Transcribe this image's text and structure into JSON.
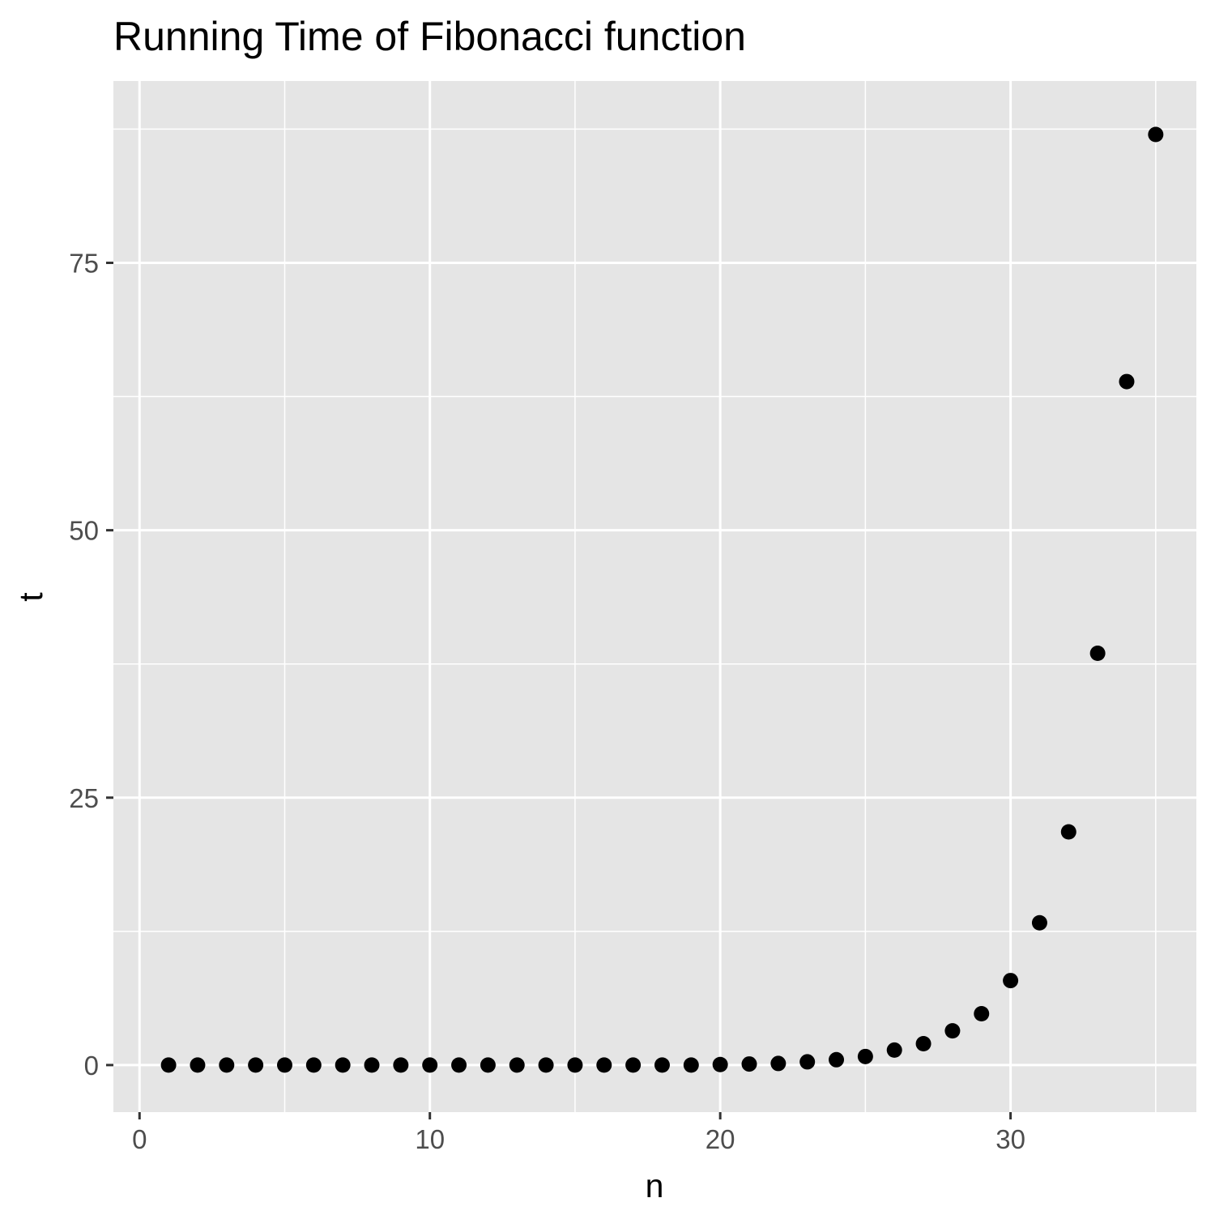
{
  "chart_data": {
    "type": "scatter",
    "title": "Running Time of Fibonacci function",
    "xlabel": "n",
    "ylabel": "t",
    "xlim": [
      -0.9,
      36.4
    ],
    "ylim": [
      -4.4,
      92.0
    ],
    "x_ticks": [
      0,
      10,
      20,
      30
    ],
    "y_ticks": [
      0,
      25,
      50,
      75
    ],
    "x_tick_labels": [
      "0",
      "10",
      "20",
      "30"
    ],
    "y_tick_labels": [
      "0",
      "25",
      "50",
      "75"
    ],
    "grid": true,
    "panel_background": "#e5e5e5",
    "grid_color": "#ffffff",
    "point_color": "#000000",
    "points": [
      {
        "x": 1,
        "y": 0.0
      },
      {
        "x": 2,
        "y": 0.0
      },
      {
        "x": 3,
        "y": 0.0
      },
      {
        "x": 4,
        "y": 0.0
      },
      {
        "x": 5,
        "y": 0.0
      },
      {
        "x": 6,
        "y": 0.0
      },
      {
        "x": 7,
        "y": 0.0
      },
      {
        "x": 8,
        "y": 0.0
      },
      {
        "x": 9,
        "y": 0.0
      },
      {
        "x": 10,
        "y": 0.0
      },
      {
        "x": 11,
        "y": 0.0
      },
      {
        "x": 12,
        "y": 0.0
      },
      {
        "x": 13,
        "y": 0.0
      },
      {
        "x": 14,
        "y": 0.0
      },
      {
        "x": 15,
        "y": 0.0
      },
      {
        "x": 16,
        "y": 0.0
      },
      {
        "x": 17,
        "y": 0.0
      },
      {
        "x": 18,
        "y": 0.0
      },
      {
        "x": 19,
        "y": 0.0
      },
      {
        "x": 20,
        "y": 0.05
      },
      {
        "x": 21,
        "y": 0.1
      },
      {
        "x": 22,
        "y": 0.15
      },
      {
        "x": 23,
        "y": 0.3
      },
      {
        "x": 24,
        "y": 0.5
      },
      {
        "x": 25,
        "y": 0.8
      },
      {
        "x": 26,
        "y": 1.4
      },
      {
        "x": 27,
        "y": 2.0
      },
      {
        "x": 28,
        "y": 3.2
      },
      {
        "x": 29,
        "y": 4.8
      },
      {
        "x": 30,
        "y": 7.9
      },
      {
        "x": 31,
        "y": 13.3
      },
      {
        "x": 32,
        "y": 21.8
      },
      {
        "x": 33,
        "y": 38.5
      },
      {
        "x": 34,
        "y": 63.9
      },
      {
        "x": 35,
        "y": 87.0
      }
    ]
  }
}
